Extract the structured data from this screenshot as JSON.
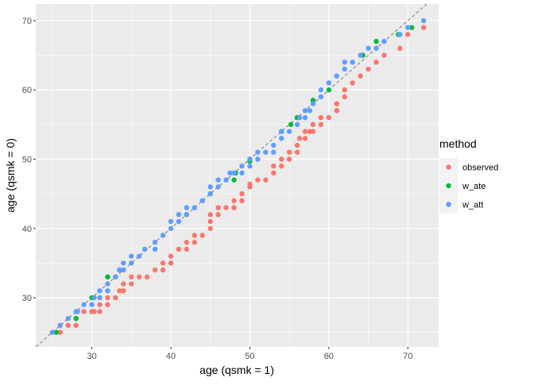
{
  "chart_data": {
    "type": "scatter",
    "title": "",
    "xlabel": "age (qsmk = 1)",
    "ylabel": "age (qsmk = 0)",
    "xlim": [
      22.9,
      73.9
    ],
    "ylim": [
      22.9,
      72.4
    ],
    "x_ticks": [
      30,
      40,
      50,
      60,
      70
    ],
    "y_ticks": [
      30,
      40,
      50,
      60,
      70
    ],
    "grid": true,
    "background": "#EBEBEB",
    "reference_line": {
      "type": "identity",
      "style": "dashed",
      "color": "#808080"
    },
    "legend": {
      "title": "method",
      "placement": "right"
    },
    "series": [
      {
        "name": "observed",
        "color": "#F8766D",
        "points": [
          [
            26,
            25
          ],
          [
            27,
            26
          ],
          [
            28,
            26
          ],
          [
            28,
            27
          ],
          [
            29,
            28
          ],
          [
            30,
            28
          ],
          [
            30.3,
            28
          ],
          [
            31,
            28
          ],
          [
            31,
            29
          ],
          [
            32,
            29
          ],
          [
            32,
            30
          ],
          [
            33,
            30
          ],
          [
            33.5,
            31
          ],
          [
            34,
            31
          ],
          [
            34,
            32
          ],
          [
            35,
            32
          ],
          [
            35,
            33
          ],
          [
            36,
            33
          ],
          [
            37,
            33
          ],
          [
            38,
            34
          ],
          [
            39,
            34
          ],
          [
            39,
            35
          ],
          [
            40,
            35
          ],
          [
            40,
            36
          ],
          [
            41,
            37
          ],
          [
            42,
            37
          ],
          [
            42,
            38
          ],
          [
            43,
            38
          ],
          [
            43,
            39
          ],
          [
            44,
            39
          ],
          [
            45,
            40
          ],
          [
            45,
            41
          ],
          [
            45,
            42
          ],
          [
            46,
            42
          ],
          [
            46,
            43
          ],
          [
            47,
            43
          ],
          [
            48,
            43
          ],
          [
            48,
            44
          ],
          [
            49,
            44
          ],
          [
            49,
            45
          ],
          [
            50,
            46
          ],
          [
            50,
            46.4
          ],
          [
            51,
            47
          ],
          [
            52,
            47
          ],
          [
            53,
            48
          ],
          [
            53,
            49
          ],
          [
            54,
            49
          ],
          [
            54,
            50
          ],
          [
            55,
            50
          ],
          [
            55,
            51
          ],
          [
            56,
            51
          ],
          [
            56,
            52
          ],
          [
            56.3,
            53
          ],
          [
            57,
            53
          ],
          [
            57,
            54
          ],
          [
            57.6,
            54
          ],
          [
            58,
            54
          ],
          [
            58,
            55
          ],
          [
            59,
            55
          ],
          [
            59,
            56
          ],
          [
            60,
            56
          ],
          [
            61,
            57
          ],
          [
            61,
            58
          ],
          [
            62,
            59
          ],
          [
            62,
            60
          ],
          [
            63,
            61
          ],
          [
            64,
            62
          ],
          [
            65,
            63
          ],
          [
            66,
            64
          ],
          [
            67,
            65
          ],
          [
            69,
            66
          ],
          [
            70,
            68
          ],
          [
            72,
            69
          ]
        ]
      },
      {
        "name": "w_ate",
        "color": "#00BA38",
        "points": [
          [
            25.5,
            25
          ],
          [
            28,
            27
          ],
          [
            30,
            30
          ],
          [
            32,
            33
          ],
          [
            33,
            33
          ],
          [
            33.5,
            34
          ],
          [
            36.7,
            37
          ],
          [
            45,
            45
          ],
          [
            48,
            47
          ],
          [
            48.2,
            48
          ],
          [
            50,
            49.7
          ],
          [
            54,
            54
          ],
          [
            55.2,
            55
          ],
          [
            56,
            56
          ],
          [
            58,
            58.5
          ],
          [
            60,
            60
          ],
          [
            64.3,
            65
          ],
          [
            66,
            67
          ],
          [
            68.8,
            68
          ],
          [
            70.5,
            69
          ]
        ]
      },
      {
        "name": "w_att",
        "color": "#619CFF",
        "points": [
          [
            25,
            25
          ],
          [
            26,
            26
          ],
          [
            27,
            27
          ],
          [
            28,
            28
          ],
          [
            28.2,
            28
          ],
          [
            29,
            29
          ],
          [
            30,
            29
          ],
          [
            30.3,
            30
          ],
          [
            31,
            30
          ],
          [
            31,
            31
          ],
          [
            32,
            31
          ],
          [
            32,
            32
          ],
          [
            33,
            33
          ],
          [
            33.5,
            34
          ],
          [
            34,
            34
          ],
          [
            34,
            35
          ],
          [
            35,
            35
          ],
          [
            35,
            36
          ],
          [
            36,
            36
          ],
          [
            36.7,
            37
          ],
          [
            38,
            37
          ],
          [
            38,
            38
          ],
          [
            39,
            39
          ],
          [
            40,
            40
          ],
          [
            40,
            41
          ],
          [
            41,
            41
          ],
          [
            41,
            42
          ],
          [
            42,
            42
          ],
          [
            42,
            43
          ],
          [
            43,
            43
          ],
          [
            44,
            44
          ],
          [
            45,
            45
          ],
          [
            45,
            46
          ],
          [
            46,
            46
          ],
          [
            46,
            47
          ],
          [
            47,
            47
          ],
          [
            47.5,
            48
          ],
          [
            48,
            48
          ],
          [
            49,
            48
          ],
          [
            49,
            49
          ],
          [
            50,
            49
          ],
          [
            50,
            50
          ],
          [
            51,
            50
          ],
          [
            51,
            51
          ],
          [
            52,
            51
          ],
          [
            53,
            51
          ],
          [
            53,
            52
          ],
          [
            54,
            53
          ],
          [
            54,
            54
          ],
          [
            55,
            54
          ],
          [
            56,
            55
          ],
          [
            56.3,
            56
          ],
          [
            57,
            56
          ],
          [
            57,
            57
          ],
          [
            57.6,
            57
          ],
          [
            58,
            58
          ],
          [
            59,
            59
          ],
          [
            59,
            60
          ],
          [
            60,
            61
          ],
          [
            61,
            62
          ],
          [
            62,
            63
          ],
          [
            62,
            64
          ],
          [
            63,
            64
          ],
          [
            64,
            65
          ],
          [
            65,
            66
          ],
          [
            66,
            66
          ],
          [
            67,
            67
          ],
          [
            69,
            68
          ],
          [
            70,
            69
          ],
          [
            72,
            70
          ]
        ]
      }
    ]
  }
}
